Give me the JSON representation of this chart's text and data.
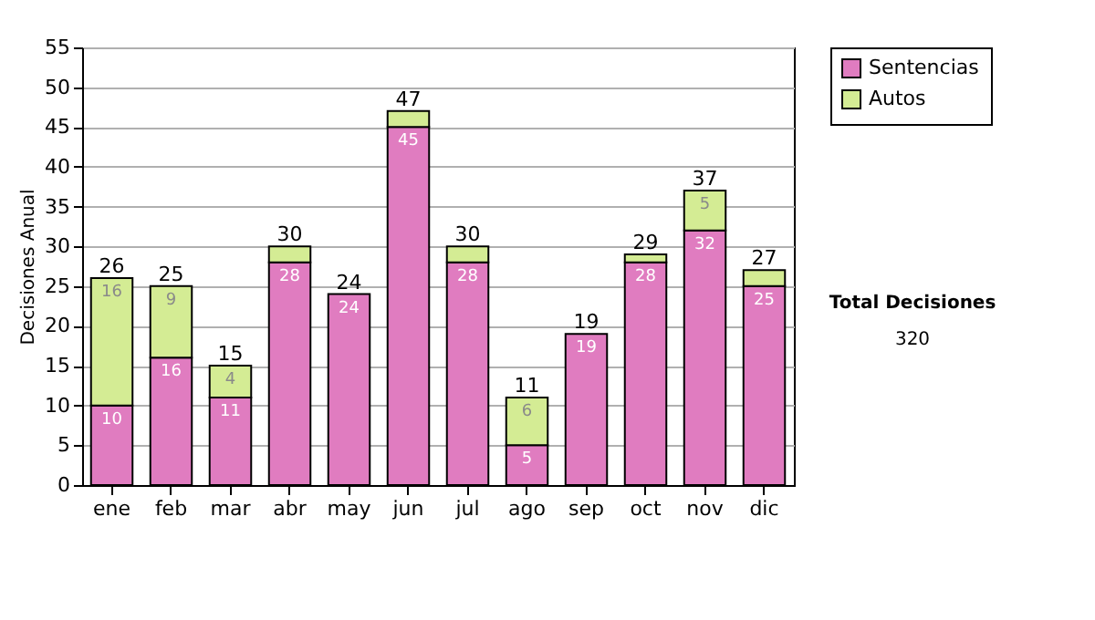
{
  "chart_data": {
    "type": "bar",
    "stacked": true,
    "ylabel": "Decisiones Anual",
    "categories": [
      "ene",
      "feb",
      "mar",
      "abr",
      "may",
      "jun",
      "jul",
      "ago",
      "sep",
      "oct",
      "nov",
      "dic"
    ],
    "series": [
      {
        "name": "Sentencias",
        "color": "#e07cc0",
        "values": [
          10,
          16,
          11,
          28,
          24,
          45,
          28,
          5,
          19,
          28,
          32,
          25
        ],
        "value_labels": [
          "10",
          "16",
          "11",
          "28",
          "24",
          "45",
          "28",
          "5",
          "19",
          "28",
          "32",
          "25"
        ]
      },
      {
        "name": "Autos",
        "color": "#d4ec94",
        "values": [
          16,
          9,
          4,
          2,
          null,
          2,
          2,
          6,
          null,
          1,
          5,
          2
        ],
        "value_labels": [
          "16",
          "9",
          "4",
          null,
          null,
          null,
          null,
          "6",
          null,
          null,
          "5",
          null
        ]
      }
    ],
    "totals": [
      "26",
      "25",
      "15",
      "30",
      "24",
      "47",
      "30",
      "11",
      "19",
      "29",
      "37",
      "27"
    ],
    "ylim": [
      0,
      55
    ],
    "yticks": [
      0,
      5,
      10,
      15,
      20,
      25,
      30,
      35,
      40,
      45,
      50,
      55
    ],
    "grid": "y",
    "legend": "right",
    "annotations": [
      "Total Decisiones",
      "320"
    ]
  }
}
